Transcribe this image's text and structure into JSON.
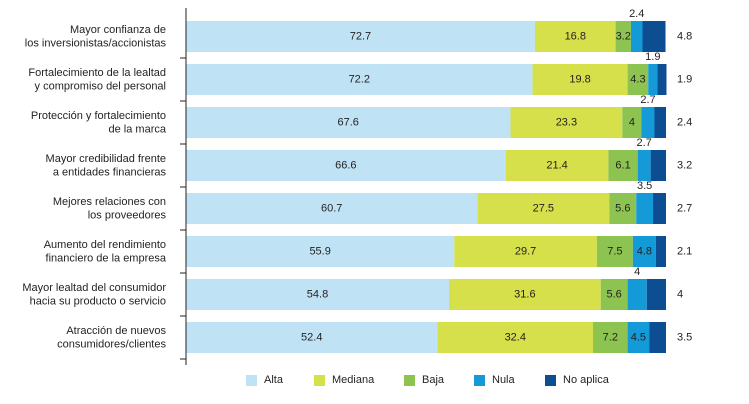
{
  "chart_data": {
    "type": "bar",
    "orientation": "horizontal",
    "stacked": true,
    "title": "",
    "xlabel": "",
    "ylabel": "",
    "xlim": [
      0,
      100
    ],
    "grid": false,
    "legend_position": "bottom",
    "categories": [
      [
        "Mayor confianza de",
        "los inversionistas/accionistas"
      ],
      [
        "Fortalecimiento de la lealtad",
        "y compromiso del personal"
      ],
      [
        "Protección y fortalecimiento",
        "de la marca"
      ],
      [
        "Mayor credibilidad frente",
        "a entidades financieras"
      ],
      [
        "Mejores relaciones con",
        "los proveedores"
      ],
      [
        "Aumento del rendimiento",
        "financiero de la empresa"
      ],
      [
        "Mayor lealtad del consumidor",
        "hacia su producto o servicio"
      ],
      [
        "Atracción de nuevos",
        "consumidores/clientes"
      ]
    ],
    "series": [
      {
        "name": "Alta",
        "color": "#bfe3f4",
        "values": [
          72.7,
          72.2,
          67.6,
          66.6,
          60.7,
          55.9,
          54.8,
          52.4
        ]
      },
      {
        "name": "Mediana",
        "color": "#d6e04a",
        "values": [
          16.8,
          19.8,
          23.3,
          21.4,
          27.5,
          29.7,
          31.6,
          32.4
        ]
      },
      {
        "name": "Baja",
        "color": "#8dc350",
        "values": [
          3.2,
          4.3,
          4,
          6.1,
          5.6,
          7.5,
          5.6,
          7.2
        ]
      },
      {
        "name": "Nula",
        "color": "#149ad6",
        "values": [
          2.4,
          1.9,
          2.7,
          2.7,
          3.5,
          4.8,
          4,
          4.5
        ]
      },
      {
        "name": "No aplica",
        "color": "#0d4d91",
        "values": [
          4.8,
          1.9,
          2.4,
          3.2,
          2.7,
          2.1,
          4,
          3.5
        ]
      }
    ]
  }
}
